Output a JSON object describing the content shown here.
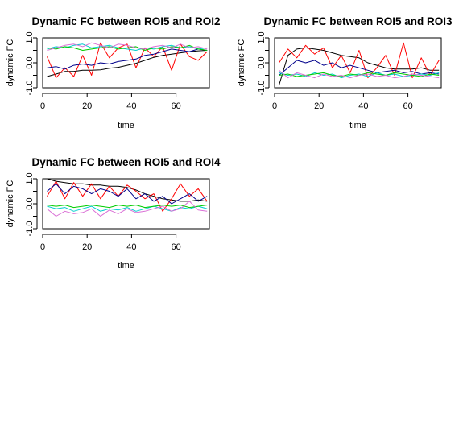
{
  "chart_data": [
    {
      "type": "line",
      "title": "Dynamic FC between ROI5 and ROI2",
      "xlabel": "time",
      "ylabel": "dynamic FC",
      "xlim": [
        0,
        75
      ],
      "ylim": [
        -1,
        1
      ],
      "x_ticks": [
        0,
        20,
        40,
        60
      ],
      "x_tick_labels": [
        "0",
        "20",
        "40",
        "60"
      ],
      "y_ticks": [
        -1,
        -0.5,
        0,
        0.5,
        1
      ],
      "y_tick_labels": [
        "-1.0",
        "",
        "0.0",
        "",
        "1.0"
      ],
      "grid": false,
      "x": [
        2,
        6,
        10,
        14,
        18,
        22,
        26,
        30,
        34,
        38,
        42,
        46,
        50,
        54,
        58,
        62,
        66,
        70,
        74
      ],
      "series": [
        {
          "color": "#000000",
          "values": [
            -0.55,
            -0.45,
            -0.35,
            -0.35,
            -0.3,
            -0.3,
            -0.28,
            -0.22,
            -0.18,
            -0.1,
            -0.02,
            0.1,
            0.22,
            0.3,
            0.35,
            0.4,
            0.45,
            0.48,
            0.5
          ]
        },
        {
          "color": "#ff0000",
          "values": [
            0.25,
            -0.6,
            -0.2,
            -0.55,
            0.3,
            -0.5,
            0.8,
            0.2,
            0.6,
            0.75,
            -0.2,
            0.6,
            0.25,
            0.65,
            -0.3,
            0.75,
            0.25,
            0.1,
            0.45
          ]
        },
        {
          "color": "#00008b",
          "values": [
            -0.2,
            -0.15,
            -0.25,
            -0.1,
            -0.05,
            -0.1,
            0.0,
            -0.05,
            0.05,
            0.1,
            0.15,
            0.3,
            0.35,
            0.45,
            0.55,
            0.5,
            0.45,
            0.55,
            0.5
          ]
        },
        {
          "color": "#00cdcd",
          "values": [
            0.55,
            0.65,
            0.6,
            0.7,
            0.75,
            0.6,
            0.65,
            0.7,
            0.6,
            0.55,
            0.5,
            0.6,
            0.55,
            0.65,
            0.7,
            0.6,
            0.65,
            0.55,
            0.6
          ]
        },
        {
          "color": "#00cd00",
          "values": [
            0.6,
            0.55,
            0.65,
            0.6,
            0.5,
            0.55,
            0.6,
            0.65,
            0.55,
            0.6,
            0.65,
            0.5,
            0.6,
            0.55,
            0.65,
            0.6,
            0.7,
            0.55,
            0.5
          ]
        },
        {
          "color": "#da70d6",
          "values": [
            0.5,
            0.6,
            0.7,
            0.75,
            0.65,
            0.8,
            0.7,
            0.6,
            0.75,
            0.7,
            0.6,
            0.55,
            0.65,
            0.7,
            0.6,
            0.75,
            0.6,
            0.65,
            0.55
          ]
        }
      ]
    },
    {
      "type": "line",
      "title": "Dynamic FC between ROI5 and ROI3",
      "xlabel": "time",
      "ylabel": "dynamic FC",
      "xlim": [
        0,
        75
      ],
      "ylim": [
        -1,
        1
      ],
      "x_ticks": [
        0,
        20,
        40,
        60
      ],
      "x_tick_labels": [
        "0",
        "20",
        "40",
        "60"
      ],
      "y_ticks": [
        -1,
        -0.5,
        0,
        0.5,
        1
      ],
      "y_tick_labels": [
        "-1.0",
        "",
        "0.0",
        "",
        "1.0"
      ],
      "grid": false,
      "x": [
        2,
        6,
        10,
        14,
        18,
        22,
        26,
        30,
        34,
        38,
        42,
        46,
        50,
        54,
        58,
        62,
        66,
        70,
        74
      ],
      "series": [
        {
          "color": "#000000",
          "values": [
            -0.9,
            0.3,
            0.55,
            0.6,
            0.55,
            0.5,
            0.4,
            0.3,
            0.25,
            0.2,
            0.0,
            -0.1,
            -0.2,
            -0.25,
            -0.25,
            -0.25,
            -0.2,
            -0.3,
            -0.3
          ]
        },
        {
          "color": "#ff0000",
          "values": [
            0.0,
            0.55,
            0.2,
            0.7,
            0.35,
            0.6,
            -0.2,
            0.3,
            -0.4,
            0.5,
            -0.6,
            -0.2,
            0.3,
            -0.5,
            0.8,
            -0.6,
            0.2,
            -0.5,
            0.1
          ]
        },
        {
          "color": "#00008b",
          "values": [
            -0.5,
            -0.2,
            0.1,
            0.0,
            0.1,
            -0.1,
            0.0,
            -0.2,
            -0.1,
            -0.2,
            -0.3,
            -0.4,
            -0.35,
            -0.3,
            -0.4,
            -0.35,
            -0.45,
            -0.4,
            -0.45
          ]
        },
        {
          "color": "#00cdcd",
          "values": [
            -0.4,
            -0.5,
            -0.45,
            -0.55,
            -0.4,
            -0.5,
            -0.45,
            -0.6,
            -0.5,
            -0.45,
            -0.55,
            -0.4,
            -0.5,
            -0.45,
            -0.55,
            -0.5,
            -0.45,
            -0.5,
            -0.4
          ]
        },
        {
          "color": "#00cd00",
          "values": [
            -0.5,
            -0.45,
            -0.55,
            -0.5,
            -0.45,
            -0.4,
            -0.5,
            -0.55,
            -0.45,
            -0.5,
            -0.4,
            -0.45,
            -0.5,
            -0.4,
            -0.45,
            -0.5,
            -0.55,
            -0.45,
            -0.5
          ]
        },
        {
          "color": "#da70d6",
          "values": [
            -0.3,
            -0.6,
            -0.4,
            -0.5,
            -0.6,
            -0.45,
            -0.55,
            -0.5,
            -0.6,
            -0.5,
            -0.45,
            -0.55,
            -0.5,
            -0.6,
            -0.55,
            -0.45,
            -0.5,
            -0.55,
            -0.6
          ]
        }
      ]
    },
    {
      "type": "line",
      "title": "Dynamic FC between ROI5 and ROI4",
      "xlabel": "time",
      "ylabel": "dynamic FC",
      "xlim": [
        0,
        75
      ],
      "ylim": [
        -1,
        1
      ],
      "x_ticks": [
        0,
        20,
        40,
        60
      ],
      "x_tick_labels": [
        "0",
        "20",
        "40",
        "60"
      ],
      "y_ticks": [
        -1,
        -0.5,
        0,
        0.5,
        1
      ],
      "y_tick_labels": [
        "-1.0",
        "",
        "0.0",
        "",
        "1.0"
      ],
      "grid": false,
      "x": [
        2,
        6,
        10,
        14,
        18,
        22,
        26,
        30,
        34,
        38,
        42,
        46,
        50,
        54,
        58,
        62,
        66,
        70,
        74
      ],
      "series": [
        {
          "color": "#000000",
          "values": [
            1.0,
            0.9,
            0.85,
            0.8,
            0.8,
            0.75,
            0.75,
            0.7,
            0.7,
            0.65,
            0.55,
            0.4,
            0.3,
            0.2,
            0.15,
            0.1,
            0.1,
            0.15,
            0.1
          ]
        },
        {
          "color": "#ff0000",
          "values": [
            0.3,
            0.9,
            0.2,
            0.85,
            0.3,
            0.8,
            0.2,
            0.7,
            0.3,
            0.75,
            0.5,
            0.2,
            0.4,
            -0.3,
            0.2,
            0.8,
            0.3,
            0.6,
            0.1
          ]
        },
        {
          "color": "#00008b",
          "values": [
            0.5,
            0.8,
            0.4,
            0.7,
            0.6,
            0.4,
            0.6,
            0.5,
            0.3,
            0.6,
            0.2,
            0.4,
            0.1,
            0.3,
            0.0,
            0.2,
            0.4,
            0.1,
            0.3
          ]
        },
        {
          "color": "#00cdcd",
          "values": [
            -0.1,
            -0.2,
            -0.15,
            -0.3,
            -0.2,
            -0.1,
            -0.3,
            -0.2,
            -0.25,
            -0.15,
            -0.3,
            -0.2,
            -0.1,
            -0.2,
            -0.3,
            -0.15,
            -0.2,
            -0.1,
            -0.2
          ]
        },
        {
          "color": "#00cd00",
          "values": [
            -0.05,
            -0.1,
            -0.05,
            -0.15,
            -0.1,
            -0.05,
            -0.1,
            -0.15,
            -0.05,
            -0.1,
            -0.05,
            -0.15,
            -0.1,
            -0.05,
            -0.1,
            -0.05,
            -0.15,
            -0.1,
            -0.05
          ]
        },
        {
          "color": "#da70d6",
          "values": [
            -0.2,
            -0.5,
            -0.3,
            -0.4,
            -0.35,
            -0.2,
            -0.5,
            -0.25,
            -0.4,
            -0.2,
            -0.35,
            -0.3,
            -0.2,
            -0.1,
            -0.3,
            -0.2,
            0.1,
            -0.25,
            -0.3
          ]
        }
      ]
    }
  ]
}
